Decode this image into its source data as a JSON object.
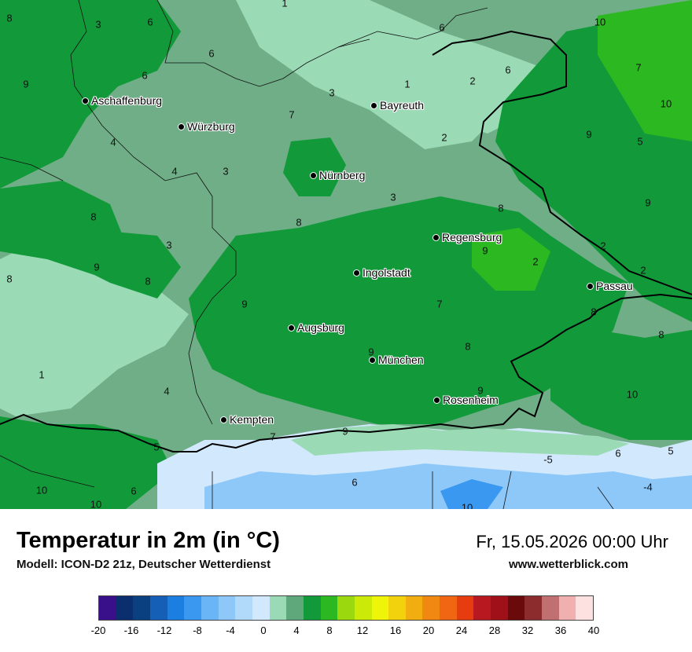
{
  "map": {
    "cities": [
      {
        "name": "Aschaffenburg"
      },
      {
        "name": "Würzburg"
      },
      {
        "name": "Bayreuth"
      },
      {
        "name": "Nürnberg"
      },
      {
        "name": "Regensburg"
      },
      {
        "name": "Ingolstadt"
      },
      {
        "name": "Passau"
      },
      {
        "name": "Augsburg"
      },
      {
        "name": "München"
      },
      {
        "name": "Rosenheim"
      },
      {
        "name": "Kempten"
      }
    ],
    "values": [
      "1",
      "6",
      "3",
      "8",
      "6",
      "6",
      "6",
      "10",
      "9",
      "6",
      "2",
      "1",
      "7",
      "10",
      "3",
      "7",
      "9",
      "5",
      "2",
      "4",
      "4",
      "3",
      "3",
      "8",
      "8",
      "9",
      "8",
      "3",
      "2",
      "8",
      "9",
      "9",
      "2",
      "2",
      "8",
      "7",
      "9",
      "8",
      "1",
      "8",
      "8",
      "4",
      "10",
      "5",
      "7",
      "9",
      "9",
      "9",
      "5",
      "6",
      "6",
      "-5",
      "10",
      "10",
      "10",
      "6",
      "-4"
    ]
  },
  "header": {
    "title": "Temperatur in 2m (in °C)",
    "subtitle": "Modell: ICON-D2 21z, Deutscher Wetterdienst",
    "datetime": "Fr, 15.05.2026 00:00 Uhr",
    "website": "www.wetterblick.com"
  },
  "legend": {
    "colors": [
      "#3a0f8a",
      "#0b2e6e",
      "#0a3f80",
      "#1560b6",
      "#1a7fe0",
      "#3b98f0",
      "#6ab5f5",
      "#8ec8f8",
      "#b0d9fa",
      "#d2e8fc",
      "#9adbb6",
      "#5fa87b",
      "#129a3a",
      "#2cb820",
      "#9bd80e",
      "#ccea08",
      "#eef508",
      "#f2d20c",
      "#f2ae10",
      "#f08812",
      "#f06612",
      "#e63c10",
      "#b81820",
      "#a01018",
      "#6a0a0a",
      "#8c2c2c",
      "#c07070",
      "#f0b0b0",
      "#fde0e0"
    ],
    "ticks": [
      "-20",
      "-16",
      "-12",
      "-8",
      "-4",
      "0",
      "4",
      "8",
      "12",
      "16",
      "20",
      "24",
      "28",
      "32",
      "36",
      "40"
    ]
  }
}
